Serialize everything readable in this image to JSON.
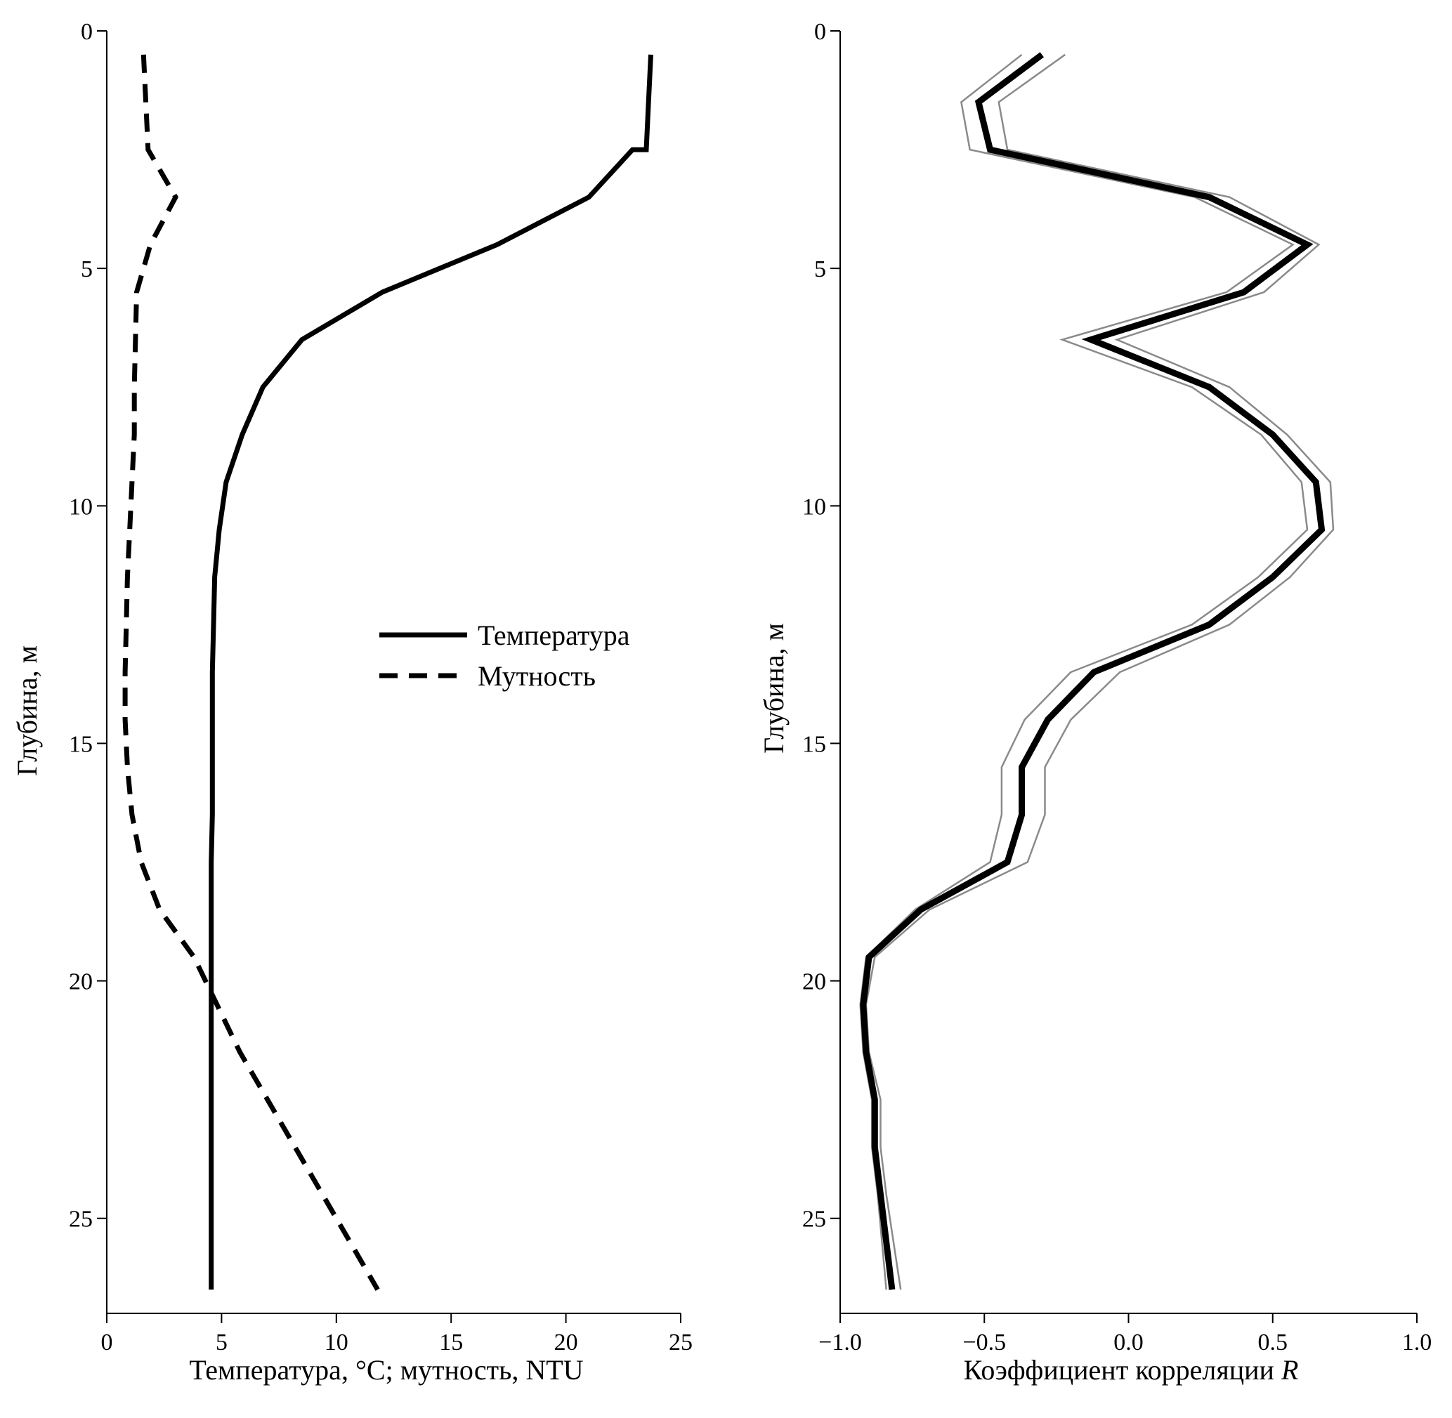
{
  "chart_data": [
    {
      "type": "line",
      "xlabel": "Температура, °С; мутность, NTU",
      "ylabel": "Глубина, м",
      "xlim": [
        0,
        25
      ],
      "ylim": [
        27,
        0
      ],
      "y_inverted": true,
      "xticks": [
        "0",
        "5",
        "10",
        "15",
        "20",
        "25"
      ],
      "yticks": [
        "0",
        "5",
        "10",
        "15",
        "20",
        "25"
      ],
      "legend": {
        "placement": "center-right",
        "entries": [
          "Температура",
          "Мутность"
        ]
      },
      "series": [
        {
          "name": "Температура",
          "style": "solid",
          "x": [
            23.7,
            23.6,
            23.5,
            22.9,
            21.0,
            17.0,
            12.0,
            8.5,
            6.8,
            5.9,
            5.2,
            4.9,
            4.7,
            4.65,
            4.6,
            4.6,
            4.6,
            4.6,
            4.55,
            4.55,
            4.55,
            4.55,
            4.55,
            4.55,
            4.55
          ],
          "y": [
            0.5,
            1.5,
            2.5,
            2.5,
            3.5,
            4.5,
            5.5,
            6.5,
            7.5,
            8.5,
            9.5,
            10.5,
            11.5,
            12.5,
            13.5,
            14.5,
            15.5,
            16.5,
            17.5,
            18.5,
            19.5,
            20.5,
            21.5,
            24.5,
            26.5
          ]
        },
        {
          "name": "Мутность",
          "style": "dashed",
          "x": [
            1.6,
            1.7,
            1.8,
            3.0,
            1.9,
            1.3,
            1.2,
            1.2,
            1.1,
            1.0,
            0.9,
            0.85,
            0.8,
            0.8,
            0.9,
            1.1,
            1.5,
            2.3,
            3.8,
            5.8,
            8.2,
            10.0,
            11.8
          ],
          "y": [
            0.5,
            1.5,
            2.5,
            3.5,
            4.5,
            5.5,
            7.5,
            8.5,
            9.5,
            10.5,
            11.5,
            12.5,
            13.5,
            14.5,
            15.5,
            16.5,
            17.5,
            18.5,
            19.5,
            21.5,
            23.5,
            25.0,
            26.5
          ]
        }
      ]
    },
    {
      "type": "line",
      "xlabel": "Коэффициент корреляции",
      "xlabel_var": "R",
      "ylabel": "Глубина, м",
      "xlim": [
        -1.0,
        1.0
      ],
      "ylim": [
        27,
        0
      ],
      "y_inverted": true,
      "xticks": [
        "−1.0",
        "−0.5",
        "0.0",
        "0.5",
        "1.0"
      ],
      "yticks": [
        "0",
        "5",
        "10",
        "15",
        "20",
        "25"
      ],
      "series": [
        {
          "style": "solid-thick",
          "x": [
            -0.3,
            -0.52,
            -0.48,
            0.28,
            0.62,
            0.4,
            -0.13,
            0.28,
            0.5,
            0.65,
            0.67,
            0.5,
            0.28,
            -0.12,
            -0.28,
            -0.37,
            -0.37,
            -0.42,
            -0.72,
            -0.9,
            -0.92,
            -0.91,
            -0.88,
            -0.88,
            -0.86,
            -0.82
          ],
          "y": [
            0.5,
            1.5,
            2.5,
            3.5,
            4.5,
            5.5,
            6.5,
            7.5,
            8.5,
            9.5,
            10.5,
            11.5,
            12.5,
            13.5,
            14.5,
            15.5,
            16.5,
            17.5,
            18.5,
            19.5,
            20.5,
            21.5,
            22.5,
            23.5,
            24.5,
            26.5
          ],
          "ci_lower": [
            -0.37,
            -0.58,
            -0.55,
            0.23,
            0.57,
            0.34,
            -0.23,
            0.22,
            0.46,
            0.6,
            0.62,
            0.45,
            0.22,
            -0.2,
            -0.36,
            -0.44,
            -0.44,
            -0.48,
            -0.74,
            -0.91,
            -0.93,
            -0.92,
            -0.89,
            -0.89,
            -0.87,
            -0.84
          ],
          "ci_upper": [
            -0.22,
            -0.45,
            -0.42,
            0.35,
            0.66,
            0.47,
            -0.04,
            0.35,
            0.55,
            0.7,
            0.71,
            0.56,
            0.35,
            -0.03,
            -0.2,
            -0.29,
            -0.29,
            -0.35,
            -0.69,
            -0.88,
            -0.91,
            -0.9,
            -0.86,
            -0.86,
            -0.84,
            -0.79
          ]
        }
      ]
    }
  ]
}
